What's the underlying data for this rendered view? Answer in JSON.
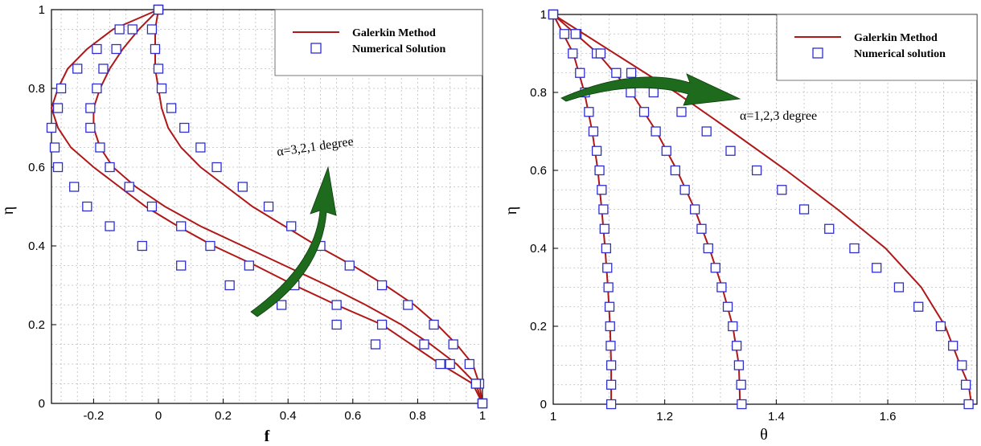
{
  "chart_data": [
    {
      "type": "line",
      "xlabel": "f",
      "ylabel": "η",
      "xlim": [
        -0.33,
        1.0
      ],
      "ylim": [
        0,
        1
      ],
      "xticks": [
        "-0.2",
        "0",
        "0.2",
        "0.4",
        "0.6",
        "0.8",
        "1"
      ],
      "xtick_values": [
        -0.2,
        0,
        0.2,
        0.4,
        0.6,
        0.8,
        1.0
      ],
      "yticks": [
        "0",
        "0.2",
        "0.4",
        "0.6",
        "0.8",
        "1"
      ],
      "ytick_values": [
        0,
        0.2,
        0.4,
        0.6,
        0.8,
        1.0
      ],
      "grid": true,
      "legend": {
        "placement": "top-right",
        "entries": [
          {
            "label": "Galerkin Method",
            "style": "line",
            "color": "#b01818"
          },
          {
            "label": "Numerical Solution",
            "style": "square-marker",
            "color": "#2e2ed0"
          }
        ]
      },
      "annotation": {
        "text": "α=3,2,1 degree"
      },
      "series": [
        {
          "points": [
            [
              1.0,
              0.0
            ],
            [
              0.97,
              0.05
            ],
            [
              0.87,
              0.1
            ],
            [
              0.78,
              0.15
            ],
            [
              0.69,
              0.2
            ],
            [
              0.55,
              0.25
            ],
            [
              0.42,
              0.3
            ],
            [
              0.3,
              0.35
            ],
            [
              0.17,
              0.4
            ],
            [
              0.06,
              0.45
            ],
            [
              -0.04,
              0.5
            ],
            [
              -0.12,
              0.55
            ],
            [
              -0.2,
              0.6
            ],
            [
              -0.27,
              0.65
            ],
            [
              -0.31,
              0.7
            ],
            [
              -0.33,
              0.75
            ],
            [
              -0.31,
              0.8
            ],
            [
              -0.28,
              0.85
            ],
            [
              -0.22,
              0.9
            ],
            [
              -0.14,
              0.95
            ],
            [
              0.0,
              1.0
            ]
          ],
          "markers": [
            [
              1.0,
              0.0
            ],
            [
              0.99,
              0.05
            ],
            [
              0.87,
              0.1
            ],
            [
              0.67,
              0.15
            ],
            [
              0.55,
              0.2
            ],
            [
              0.38,
              0.25
            ],
            [
              0.22,
              0.3
            ],
            [
              0.07,
              0.35
            ],
            [
              -0.05,
              0.4
            ],
            [
              -0.15,
              0.45
            ],
            [
              -0.22,
              0.5
            ],
            [
              -0.26,
              0.55
            ],
            [
              -0.31,
              0.6
            ],
            [
              -0.32,
              0.65
            ],
            [
              -0.33,
              0.7
            ],
            [
              -0.31,
              0.75
            ],
            [
              -0.3,
              0.8
            ],
            [
              -0.25,
              0.85
            ],
            [
              -0.19,
              0.9
            ],
            [
              -0.12,
              0.95
            ],
            [
              0.0,
              1.0
            ]
          ]
        },
        {
          "points": [
            [
              1.0,
              0.0
            ],
            [
              0.98,
              0.05
            ],
            [
              0.92,
              0.1
            ],
            [
              0.84,
              0.15
            ],
            [
              0.75,
              0.2
            ],
            [
              0.64,
              0.25
            ],
            [
              0.52,
              0.3
            ],
            [
              0.39,
              0.35
            ],
            [
              0.26,
              0.4
            ],
            [
              0.13,
              0.45
            ],
            [
              0.02,
              0.5
            ],
            [
              -0.07,
              0.55
            ],
            [
              -0.14,
              0.6
            ],
            [
              -0.18,
              0.65
            ],
            [
              -0.2,
              0.7
            ],
            [
              -0.2,
              0.75
            ],
            [
              -0.18,
              0.8
            ],
            [
              -0.15,
              0.85
            ],
            [
              -0.11,
              0.9
            ],
            [
              -0.06,
              0.95
            ],
            [
              0.0,
              1.0
            ]
          ],
          "markers": [
            [
              1.0,
              0.0
            ],
            [
              0.98,
              0.05
            ],
            [
              0.9,
              0.1
            ],
            [
              0.82,
              0.15
            ],
            [
              0.69,
              0.2
            ],
            [
              0.55,
              0.25
            ],
            [
              0.42,
              0.3
            ],
            [
              0.28,
              0.35
            ],
            [
              0.16,
              0.4
            ],
            [
              0.07,
              0.45
            ],
            [
              -0.02,
              0.5
            ],
            [
              -0.09,
              0.55
            ],
            [
              -0.15,
              0.6
            ],
            [
              -0.18,
              0.65
            ],
            [
              -0.21,
              0.7
            ],
            [
              -0.21,
              0.75
            ],
            [
              -0.19,
              0.8
            ],
            [
              -0.17,
              0.85
            ],
            [
              -0.13,
              0.9
            ],
            [
              -0.08,
              0.95
            ],
            [
              0.0,
              1.0
            ]
          ]
        },
        {
          "points": [
            [
              1.0,
              0.0
            ],
            [
              0.99,
              0.05
            ],
            [
              0.97,
              0.1
            ],
            [
              0.92,
              0.15
            ],
            [
              0.86,
              0.2
            ],
            [
              0.79,
              0.25
            ],
            [
              0.7,
              0.3
            ],
            [
              0.6,
              0.35
            ],
            [
              0.49,
              0.4
            ],
            [
              0.39,
              0.45
            ],
            [
              0.29,
              0.5
            ],
            [
              0.21,
              0.55
            ],
            [
              0.13,
              0.6
            ],
            [
              0.07,
              0.65
            ],
            [
              0.03,
              0.7
            ],
            [
              0.01,
              0.75
            ],
            [
              0.0,
              0.8
            ],
            [
              -0.01,
              0.85
            ],
            [
              -0.01,
              0.9
            ],
            [
              -0.01,
              0.95
            ],
            [
              0.0,
              1.0
            ]
          ],
          "markers": [
            [
              1.0,
              0.0
            ],
            [
              0.98,
              0.05
            ],
            [
              0.96,
              0.1
            ],
            [
              0.91,
              0.15
            ],
            [
              0.85,
              0.2
            ],
            [
              0.77,
              0.25
            ],
            [
              0.69,
              0.3
            ],
            [
              0.59,
              0.35
            ],
            [
              0.5,
              0.4
            ],
            [
              0.41,
              0.45
            ],
            [
              0.34,
              0.5
            ],
            [
              0.26,
              0.55
            ],
            [
              0.18,
              0.6
            ],
            [
              0.13,
              0.65
            ],
            [
              0.08,
              0.7
            ],
            [
              0.04,
              0.75
            ],
            [
              0.01,
              0.8
            ],
            [
              0.0,
              0.85
            ],
            [
              -0.01,
              0.9
            ],
            [
              -0.02,
              0.95
            ],
            [
              0.0,
              1.0
            ]
          ]
        }
      ]
    },
    {
      "type": "line",
      "xlabel": "θ",
      "ylabel": "η",
      "xlim": [
        1.0,
        1.76
      ],
      "ylim": [
        0,
        1
      ],
      "xticks": [
        "1",
        "1.2",
        "1.4",
        "1.6"
      ],
      "xtick_values": [
        1.0,
        1.2,
        1.4,
        1.6
      ],
      "yticks": [
        "0",
        "0.2",
        "0.4",
        "0.6",
        "0.8",
        "1"
      ],
      "ytick_values": [
        0,
        0.2,
        0.4,
        0.6,
        0.8,
        1.0
      ],
      "grid": true,
      "legend": {
        "placement": "top-right",
        "entries": [
          {
            "label": "Galerkin Method",
            "style": "line",
            "color": "#b01818"
          },
          {
            "label": "Numerical solution",
            "style": "square-marker",
            "color": "#2e2ed0"
          }
        ]
      },
      "annotation": {
        "text": "α=1,2,3 degree"
      },
      "series": [
        {
          "points": [
            [
              1.104,
              0.0
            ],
            [
              1.104,
              0.1
            ],
            [
              1.102,
              0.2
            ],
            [
              1.098,
              0.3
            ],
            [
              1.093,
              0.4
            ],
            [
              1.087,
              0.5
            ],
            [
              1.08,
              0.6
            ],
            [
              1.07,
              0.7
            ],
            [
              1.056,
              0.8
            ],
            [
              1.036,
              0.9
            ],
            [
              1.0,
              1.0
            ]
          ],
          "markers": [
            [
              1.104,
              0.0
            ],
            [
              1.104,
              0.05
            ],
            [
              1.104,
              0.1
            ],
            [
              1.103,
              0.15
            ],
            [
              1.102,
              0.2
            ],
            [
              1.101,
              0.25
            ],
            [
              1.099,
              0.3
            ],
            [
              1.097,
              0.35
            ],
            [
              1.095,
              0.4
            ],
            [
              1.092,
              0.45
            ],
            [
              1.09,
              0.5
            ],
            [
              1.087,
              0.55
            ],
            [
              1.083,
              0.6
            ],
            [
              1.078,
              0.65
            ],
            [
              1.072,
              0.7
            ],
            [
              1.064,
              0.75
            ],
            [
              1.057,
              0.8
            ],
            [
              1.048,
              0.85
            ],
            [
              1.035,
              0.9
            ],
            [
              1.02,
              0.95
            ],
            [
              1.0,
              1.0
            ]
          ]
        },
        {
          "points": [
            [
              1.335,
              0.0
            ],
            [
              1.333,
              0.1
            ],
            [
              1.322,
              0.2
            ],
            [
              1.303,
              0.3
            ],
            [
              1.28,
              0.4
            ],
            [
              1.254,
              0.5
            ],
            [
              1.222,
              0.6
            ],
            [
              1.185,
              0.7
            ],
            [
              1.14,
              0.8
            ],
            [
              1.08,
              0.9
            ],
            [
              1.0,
              1.0
            ]
          ],
          "markers": [
            [
              1.338,
              0.0
            ],
            [
              1.337,
              0.05
            ],
            [
              1.333,
              0.1
            ],
            [
              1.329,
              0.15
            ],
            [
              1.322,
              0.2
            ],
            [
              1.313,
              0.25
            ],
            [
              1.302,
              0.3
            ],
            [
              1.291,
              0.35
            ],
            [
              1.278,
              0.4
            ],
            [
              1.266,
              0.45
            ],
            [
              1.254,
              0.5
            ],
            [
              1.236,
              0.55
            ],
            [
              1.219,
              0.6
            ],
            [
              1.203,
              0.65
            ],
            [
              1.184,
              0.7
            ],
            [
              1.163,
              0.75
            ],
            [
              1.139,
              0.8
            ],
            [
              1.113,
              0.85
            ],
            [
              1.078,
              0.9
            ],
            [
              1.042,
              0.95
            ],
            [
              1.0,
              1.0
            ]
          ]
        },
        {
          "points": [
            [
              1.75,
              0.0
            ],
            [
              1.745,
              0.05
            ],
            [
              1.73,
              0.1
            ],
            [
              1.703,
              0.2
            ],
            [
              1.66,
              0.3
            ],
            [
              1.596,
              0.4
            ],
            [
              1.51,
              0.5
            ],
            [
              1.418,
              0.6
            ],
            [
              1.32,
              0.7
            ],
            [
              1.22,
              0.8
            ],
            [
              1.11,
              0.9
            ],
            [
              1.0,
              1.0
            ]
          ],
          "markers": [
            [
              1.745,
              0.0
            ],
            [
              1.74,
              0.05
            ],
            [
              1.733,
              0.1
            ],
            [
              1.717,
              0.15
            ],
            [
              1.695,
              0.2
            ],
            [
              1.655,
              0.25
            ],
            [
              1.62,
              0.3
            ],
            [
              1.58,
              0.35
            ],
            [
              1.54,
              0.4
            ],
            [
              1.495,
              0.45
            ],
            [
              1.45,
              0.5
            ],
            [
              1.41,
              0.55
            ],
            [
              1.365,
              0.6
            ],
            [
              1.318,
              0.65
            ],
            [
              1.275,
              0.7
            ],
            [
              1.23,
              0.75
            ],
            [
              1.18,
              0.8
            ],
            [
              1.14,
              0.85
            ],
            [
              1.085,
              0.9
            ],
            [
              1.04,
              0.95
            ],
            [
              1.0,
              1.0
            ]
          ]
        }
      ]
    }
  ]
}
